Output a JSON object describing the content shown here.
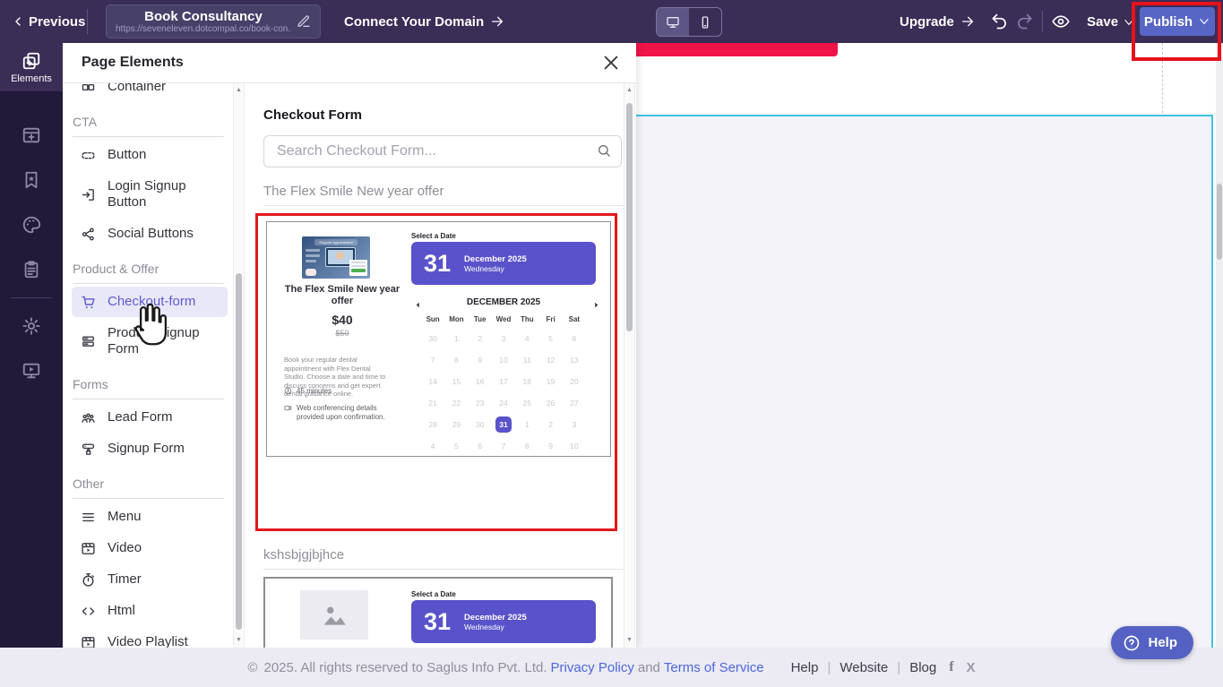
{
  "topbar": {
    "previous": "Previous",
    "site_title": "Book Consultancy",
    "site_url": "https://seveneleven.dotcompal.co/book-con...",
    "connect_domain": "Connect Your Domain",
    "upgrade": "Upgrade",
    "save": "Save",
    "publish": "Publish",
    "icons": [
      "chevron-left-icon",
      "edit-icon",
      "arrow-right-icon",
      "desktop-icon",
      "mobile-icon",
      "undo-icon",
      "redo-icon",
      "eye-icon",
      "chevron-down-icon"
    ]
  },
  "sidebar": {
    "active_label": "Elements",
    "icons": [
      "elements-icon",
      "window-add-icon",
      "bookmark-star-icon",
      "palette-icon",
      "clipboard-icon",
      "gear-icon",
      "monitor-play-icon"
    ]
  },
  "panel": {
    "title": "Page Elements",
    "close_icon": "close-icon",
    "sections": [
      {
        "header": "",
        "items": [
          {
            "label": "Container",
            "icon": "container-icon",
            "partial": true
          }
        ]
      },
      {
        "header": "CTA",
        "items": [
          {
            "label": "Button",
            "icon": "button-icon"
          },
          {
            "label": "Login Signup Button",
            "icon": "login-icon"
          },
          {
            "label": "Social Buttons",
            "icon": "share-icon"
          }
        ]
      },
      {
        "header": "Product & Offer",
        "items": [
          {
            "label": "Checkout-form",
            "icon": "cart-icon",
            "selected": true
          },
          {
            "label": "Product Signup Form",
            "icon": "product-form-icon"
          }
        ]
      },
      {
        "header": "Forms",
        "items": [
          {
            "label": "Lead Form",
            "icon": "lead-form-icon"
          },
          {
            "label": "Signup Form",
            "icon": "signup-form-icon"
          }
        ]
      },
      {
        "header": "Other",
        "items": [
          {
            "label": "Menu",
            "icon": "menu-icon"
          },
          {
            "label": "Video",
            "icon": "video-icon"
          },
          {
            "label": "Timer",
            "icon": "timer-icon"
          },
          {
            "label": "Html",
            "icon": "html-icon"
          },
          {
            "label": "Video Playlist",
            "icon": "video-playlist-icon"
          }
        ]
      }
    ]
  },
  "content": {
    "heading": "Checkout Form",
    "search_placeholder": "Search Checkout Form...",
    "search_icon": "search-icon",
    "group1_label": "The Flex Smile New year offer",
    "group2_label": "kshsbjgjbjhce"
  },
  "preview": {
    "select_date_label": "Select a Date",
    "selected_day": "31",
    "selected_month_year": "December 2025",
    "selected_weekday": "Wednesday",
    "title": "The Flex Smile New year offer",
    "price": "$40",
    "old_price": "$50",
    "description": "Book your regular dental appointment with Flex Dental Studio. Choose a date and time to discuss concerns and get expert dental guidance online.",
    "duration": "45 minutes",
    "conference_note": "Web conferencing details provided upon confirmation.",
    "thumbnail_caption": "Regular Appointment",
    "calendar": {
      "month_header": "DECEMBER 2025",
      "day_names": [
        "Sun",
        "Mon",
        "Tue",
        "Wed",
        "Thu",
        "Fri",
        "Sat"
      ],
      "weeks": [
        [
          "30",
          "1",
          "2",
          "3",
          "4",
          "5",
          "6"
        ],
        [
          "7",
          "8",
          "9",
          "10",
          "11",
          "12",
          "13"
        ],
        [
          "14",
          "15",
          "16",
          "17",
          "18",
          "19",
          "20"
        ],
        [
          "21",
          "22",
          "23",
          "24",
          "25",
          "26",
          "27"
        ],
        [
          "28",
          "29",
          "30",
          "31",
          "1",
          "2",
          "3"
        ],
        [
          "4",
          "5",
          "6",
          "7",
          "8",
          "9",
          "10"
        ]
      ],
      "selected_week": 4,
      "selected_col": 3
    }
  },
  "footer": {
    "copyright_symbol": "©",
    "rights_text": "2025. All rights reserved to Saglus Info Pvt. Ltd.",
    "privacy": "Privacy Policy",
    "and_text": "and",
    "terms": "Terms of Service",
    "nav_links": [
      "Help",
      "Website",
      "Blog"
    ],
    "facebook_glyph": "f",
    "x_glyph": "X"
  },
  "help_button": {
    "label": "Help",
    "icon": "question-circle-icon"
  },
  "colors": {
    "topbar": "#3a2d56",
    "sidebar": "#211a38",
    "accent_purple": "#5a52ca",
    "publish_button": "#5766c5",
    "highlight_red": "#e6121c",
    "canvas_bar_red": "#f01348",
    "cyan_guide": "#3ec3e2",
    "selected_item_bg": "#e9e8f8",
    "selected_item_text": "#5d5bd0",
    "link_blue": "#4a68d9"
  }
}
